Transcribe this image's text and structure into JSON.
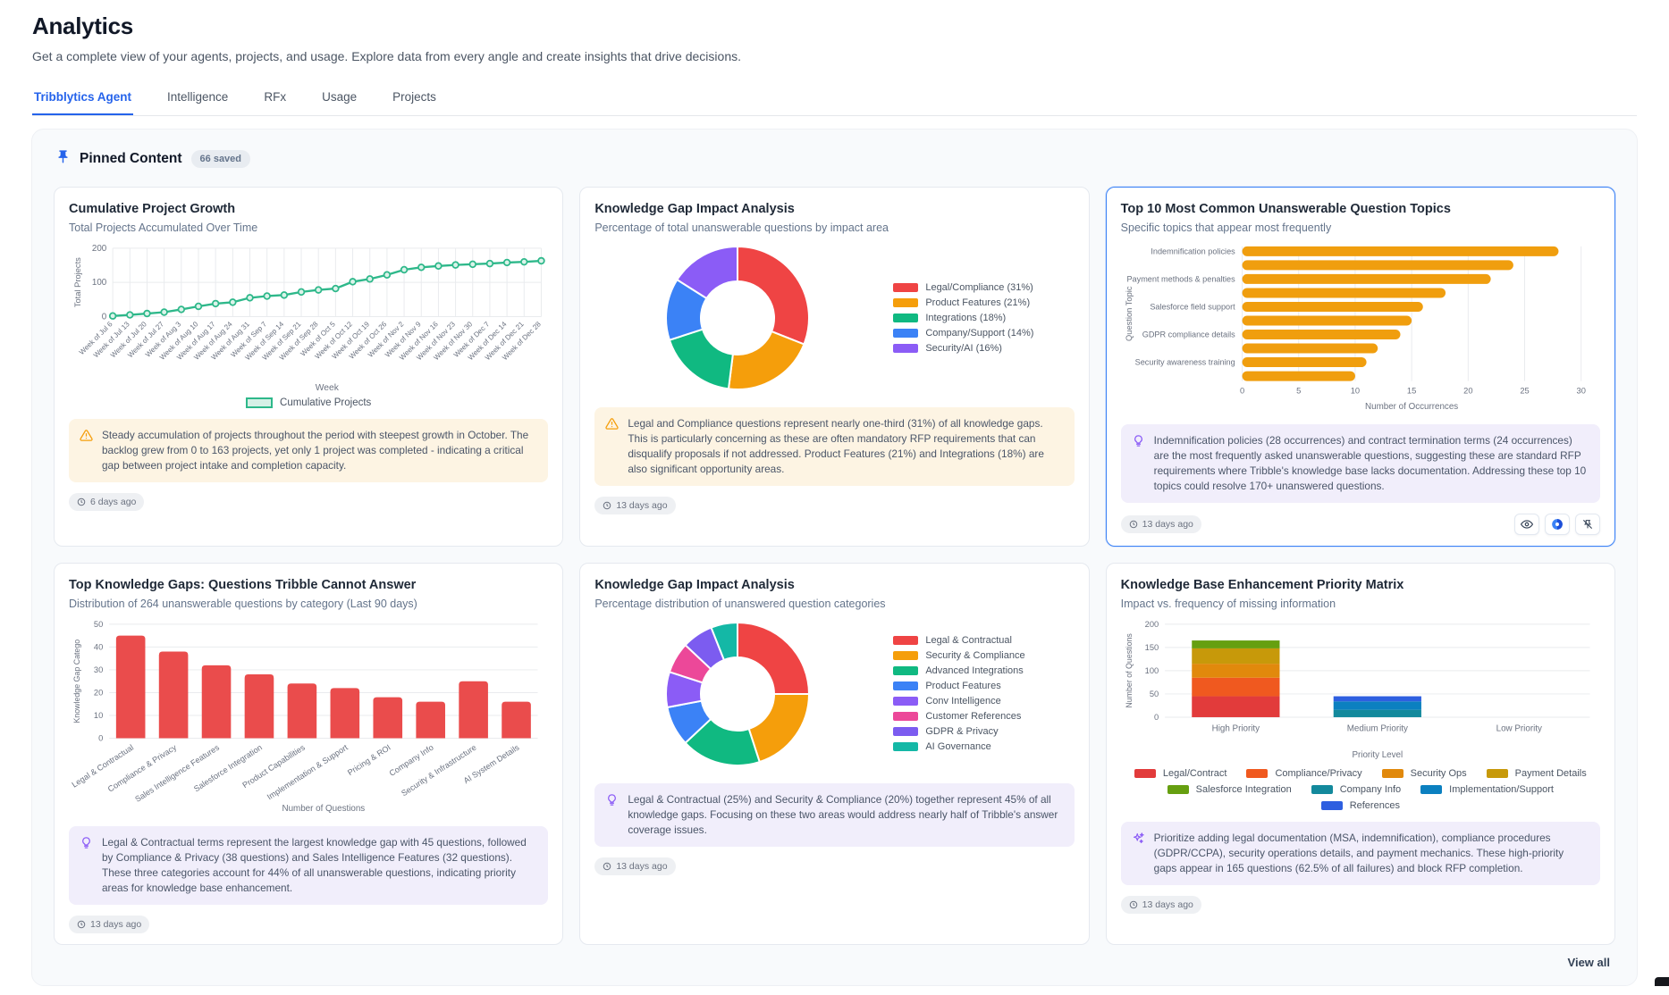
{
  "page": {
    "title": "Analytics",
    "subtitle": "Get a complete view of your agents, projects, and usage. Explore data from every angle and create insights that drive decisions.",
    "tabs": [
      {
        "label": "Tribblytics Agent",
        "active": true
      },
      {
        "label": "Intelligence",
        "active": false
      },
      {
        "label": "RFx",
        "active": false
      },
      {
        "label": "Usage",
        "active": false
      },
      {
        "label": "Projects",
        "active": false
      }
    ],
    "pinned": {
      "title": "Pinned Content",
      "badge": "66 saved",
      "view_all": "View all"
    },
    "icons": [
      "pin-icon",
      "clock-icon",
      "warning-icon",
      "lightbulb-icon",
      "sparkles-icon",
      "eye-icon",
      "palette-icon",
      "unpin-icon"
    ],
    "theme": {
      "accent": "#2563eb",
      "panel_bg": "#f8fafc",
      "warning_bg": "#fdf4e3",
      "idea_bg": "#f1eefb"
    }
  },
  "cards": [
    {
      "title": "Cumulative Project Growth",
      "subtitle": "Total Projects Accumulated Over Time",
      "insight": "Steady accumulation of projects throughout the period with steepest growth in October. The backlog grew from 0 to 163 projects, yet only 1 project was completed - indicating a critical gap between project intake and completion capacity.",
      "insight_icon": "warning-icon",
      "timestamp": "6 days ago",
      "chart_data": {
        "type": "line",
        "title": "Cumulative Project Growth",
        "xlabel": "Week",
        "ylabel": "Total Projects",
        "ylim": [
          0,
          200
        ],
        "yticks": [
          0,
          100,
          200
        ],
        "legend_label": "Cumulative Projects",
        "color": "#2eb88a",
        "grid": true,
        "x": [
          "Week of Jul 6",
          "Week of Jul 13",
          "Week of Jul 20",
          "Week of Jul 27",
          "Week of Aug 3",
          "Week of Aug 10",
          "Week of Aug 17",
          "Week of Aug 24",
          "Week of Aug 31",
          "Week of Sep 7",
          "Week of Sep 14",
          "Week of Sep 21",
          "Week of Sep 28",
          "Week of Oct 5",
          "Week of Oct 12",
          "Week of Oct 19",
          "Week of Oct 26",
          "Week of Nov 2",
          "Week of Nov 9",
          "Week of Nov 16",
          "Week of Nov 23",
          "Week of Nov 30",
          "Week of Dec 7",
          "Week of Dec 14",
          "Week of Dec 21",
          "Week of Dec 28"
        ],
        "values": [
          2,
          5,
          9,
          13,
          21,
          30,
          38,
          42,
          55,
          60,
          63,
          72,
          78,
          82,
          102,
          110,
          122,
          137,
          144,
          148,
          151,
          153,
          155,
          158,
          160,
          163
        ]
      }
    },
    {
      "title": "Knowledge Gap Impact Analysis",
      "subtitle": "Percentage of total unanswerable questions by impact area",
      "insight": "Legal and Compliance questions represent nearly one-third (31%) of all knowledge gaps. This is particularly concerning as these are often mandatory RFP requirements that can disqualify proposals if not addressed. Product Features (21%) and Integrations (18%) are also significant opportunity areas.",
      "insight_icon": "warning-icon",
      "timestamp": "13 days ago",
      "chart_data": {
        "type": "pie",
        "legend_position": "right",
        "labels": [
          "Legal/Compliance (31%)",
          "Product Features (21%)",
          "Integrations (18%)",
          "Company/Support (14%)",
          "Security/AI (16%)"
        ],
        "values": [
          31,
          21,
          18,
          14,
          16
        ],
        "colors": [
          "#ef4444",
          "#f59e0b",
          "#10b981",
          "#3b82f6",
          "#8b5cf6"
        ]
      }
    },
    {
      "title": "Top 10 Most Common Unanswerable Question Topics",
      "subtitle": "Specific topics that appear most frequently",
      "insight": "Indemnification policies (28 occurrences) and contract termination terms (24 occurrences) are the most frequently asked unanswerable questions, suggesting these are standard RFP requirements where Tribble's knowledge base lacks documentation. Addressing these top 10 topics could resolve 170+ unanswered questions.",
      "insight_icon": "lightbulb-icon",
      "timestamp": "13 days ago",
      "chart_data": {
        "type": "bar",
        "orientation": "horizontal",
        "xlabel": "Number of Occurrences",
        "ylabel": "Question Topic",
        "xlim": [
          0,
          30
        ],
        "xticks": [
          0,
          5,
          10,
          15,
          20,
          25,
          30
        ],
        "color": "#f09e0e",
        "categories": [
          "Indemnification policies",
          "",
          "Payment methods & penalties",
          "",
          "Salesforce field support",
          "",
          "GDPR compliance details",
          "",
          "Security awareness training",
          ""
        ],
        "values": [
          28,
          24,
          22,
          18,
          16,
          15,
          14,
          12,
          11,
          10
        ]
      }
    },
    {
      "title": "Top Knowledge Gaps: Questions Tribble Cannot Answer",
      "subtitle": "Distribution of 264 unanswerable questions by category (Last 90 days)",
      "insight": "Legal & Contractual terms represent the largest knowledge gap with 45 questions, followed by Compliance & Privacy (38 questions) and Sales Intelligence Features (32 questions). These three categories account for 44% of all unanswerable questions, indicating priority areas for knowledge base enhancement.",
      "insight_icon": "lightbulb-icon",
      "timestamp": "13 days ago",
      "chart_data": {
        "type": "bar",
        "orientation": "vertical",
        "xlabel": "Number of Questions",
        "ylabel": "Knowledge Gap Catego",
        "ylim": [
          0,
          50
        ],
        "yticks": [
          0,
          10,
          20,
          30,
          40,
          50
        ],
        "color": "#ea4c4c",
        "categories": [
          "Legal & Contractual",
          "Compliance & Privacy",
          "Sales Intelligence Features",
          "Salesforce Integration",
          "Product Capabilities",
          "Implementation & Support",
          "Pricing & ROI",
          "Company Info",
          "Security & Infrastructure",
          "AI System Details"
        ],
        "values": [
          45,
          38,
          32,
          28,
          24,
          22,
          18,
          16,
          25,
          16
        ]
      }
    },
    {
      "title": "Knowledge Gap Impact Analysis",
      "subtitle": "Percentage distribution of unanswered question categories",
      "insight": "Legal & Contractual (25%) and Security & Compliance (20%) together represent 45% of all knowledge gaps. Focusing on these two areas would address nearly half of Tribble's answer coverage issues.",
      "insight_icon": "lightbulb-icon",
      "timestamp": "13 days ago",
      "chart_data": {
        "type": "pie",
        "legend_position": "right",
        "labels": [
          "Legal & Contractual",
          "Security & Compliance",
          "Advanced Integrations",
          "Product Features",
          "Conv Intelligence",
          "Customer References",
          "GDPR & Privacy",
          "AI Governance"
        ],
        "values": [
          25,
          20,
          18,
          9,
          8,
          7,
          7,
          6
        ],
        "colors": [
          "#ef4444",
          "#f59e0b",
          "#10b981",
          "#3b82f6",
          "#8b5cf6",
          "#ec4899",
          "#7c5cf0",
          "#14b8a6"
        ]
      }
    },
    {
      "title": "Knowledge Base Enhancement Priority Matrix",
      "subtitle": "Impact vs. frequency of missing information",
      "insight": "Prioritize adding legal documentation (MSA, indemnification), compliance procedures (GDPR/CCPA), security operations details, and payment mechanics. These high-priority gaps appear in 165 questions (62.5% of all failures) and block RFP completion.",
      "insight_icon": "sparkles-icon",
      "timestamp": "13 days ago",
      "chart_data": {
        "type": "bar",
        "orientation": "stacked",
        "xlabel": "Priority Level",
        "ylabel": "Number of Questions",
        "ylim": [
          0,
          200
        ],
        "yticks": [
          0,
          50,
          100,
          150,
          200
        ],
        "categories": [
          "High Priority",
          "Medium Priority",
          "Low Priority"
        ],
        "series": [
          {
            "name": "Legal/Contract",
            "color": "#e23b3b",
            "values": [
              45,
              0,
              0
            ]
          },
          {
            "name": "Compliance/Privacy",
            "color": "#f0591f",
            "values": [
              40,
              0,
              0
            ]
          },
          {
            "name": "Security Ops",
            "color": "#e1890c",
            "values": [
              30,
              0,
              0
            ]
          },
          {
            "name": "Payment Details",
            "color": "#c7990a",
            "values": [
              33,
              0,
              0
            ]
          },
          {
            "name": "Salesforce Integration",
            "color": "#669f10",
            "values": [
              17,
              0,
              0
            ]
          },
          {
            "name": "Company Info",
            "color": "#13899c",
            "values": [
              0,
              16,
              0
            ]
          },
          {
            "name": "Implementation/Support",
            "color": "#0b80c0",
            "values": [
              0,
              18,
              0
            ]
          },
          {
            "name": "References",
            "color": "#2e5fe0",
            "values": [
              0,
              11,
              0
            ]
          }
        ]
      }
    }
  ]
}
